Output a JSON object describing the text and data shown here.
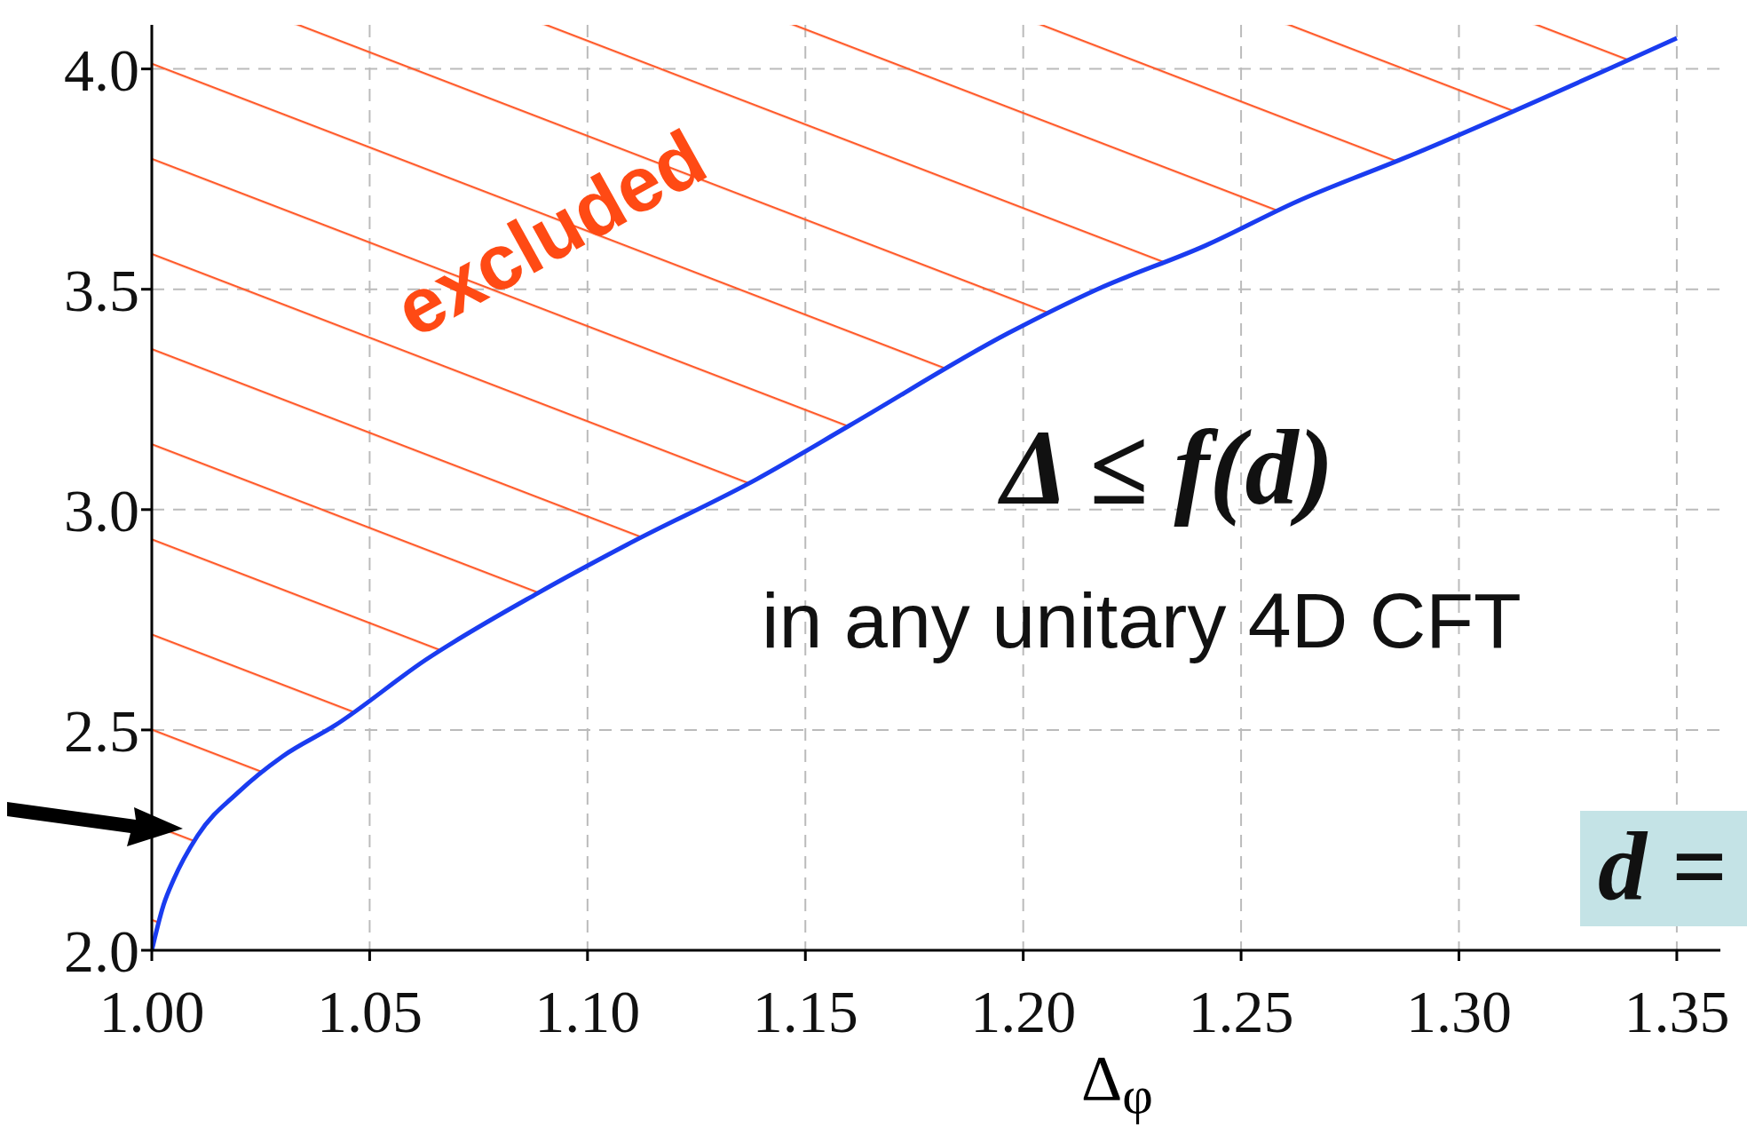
{
  "chart_data": {
    "type": "line",
    "xlabel": "Δ$_{φ}$",
    "x": [
      1.0,
      1.0026,
      1.005,
      1.0105,
      1.02,
      1.03,
      1.042,
      1.063,
      1.0885,
      1.109,
      1.139,
      1.16,
      1.1965,
      1.217,
      1.242,
      1.263,
      1.288,
      1.35
    ],
    "series": [
      {
        "color": "#1a3cf0",
        "values": [
          2.0,
          2.1,
          2.16,
          2.26,
          2.36,
          2.44,
          2.51,
          2.66,
          2.81,
          2.92,
          3.07,
          3.19,
          3.4,
          3.5,
          3.6,
          3.7,
          3.8,
          4.07
        ],
        "lower": [
          2.0,
          2.1,
          2.16,
          2.26,
          2.36,
          2.44,
          2.51,
          2.66,
          2.81,
          2.92,
          3.07,
          3.19,
          3.4,
          3.5,
          3.6,
          3.7,
          3.8,
          4.07
        ],
        "upper": [
          4.1,
          4.1,
          4.1,
          4.1,
          4.1,
          4.1,
          4.1,
          4.1,
          4.1,
          4.1,
          4.1,
          4.1,
          4.1,
          4.1,
          4.1,
          4.1,
          4.1,
          4.1
        ]
      }
    ],
    "xlim": [
      1.0,
      1.36
    ],
    "xticks": [
      {
        "value": 1.0,
        "label": "1.00"
      },
      1.05,
      {
        "value": 1.1,
        "label": "1.10"
      },
      1.15,
      {
        "value": 1.2,
        "label": "1.20"
      },
      1.25,
      {
        "value": 1.3,
        "label": "1.30"
      },
      1.35
    ],
    "ylim": [
      2.0,
      4.1
    ],
    "yticks": [
      {
        "value": 2,
        "label": "2.0"
      },
      2.5,
      {
        "value": 3,
        "label": "3.0"
      },
      3.5,
      {
        "value": 4,
        "label": "4.0"
      }
    ],
    "grid": true,
    "line_style": "solid",
    "marker": "none",
    "annotations": [
      "excluded",
      "Δ ≤ f(d)",
      "in any unitary 4D CFT",
      "d ="
    ]
  }
}
